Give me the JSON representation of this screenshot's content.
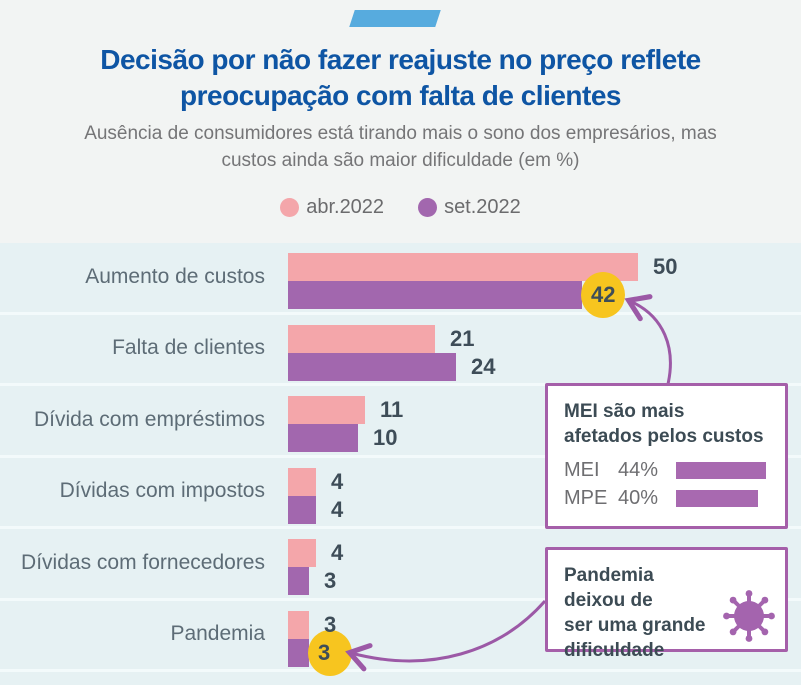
{
  "header": {
    "title_lines": [
      "Decisão por não fazer reajuste no preço reflete",
      "preocupação com falta de clientes"
    ],
    "subtitle_lines": [
      "Ausência de consumidores está tirando mais o sono dos empresários, mas",
      "custos ainda são maior dificuldade (em %)"
    ],
    "legend": [
      {
        "label": "abr.2022",
        "color": "#f4a6aa"
      },
      {
        "label": "set.2022",
        "color": "#a267ae"
      }
    ]
  },
  "chart_data": {
    "type": "bar",
    "orientation": "horizontal",
    "unit": "%",
    "categories": [
      "Aumento de custos",
      "Falta de clientes",
      "Dívida com empréstimos",
      "Dívidas com impostos",
      "Dívidas com fornecedores",
      "Pandemia"
    ],
    "series": [
      {
        "name": "abr.2022",
        "color": "#f4a6aa",
        "values": [
          50,
          21,
          11,
          4,
          4,
          3
        ]
      },
      {
        "name": "set.2022",
        "color": "#a267ae",
        "values": [
          42,
          24,
          10,
          4,
          3,
          3
        ]
      }
    ],
    "xlim": [
      0,
      50
    ],
    "grid": false,
    "legend_position": "top",
    "highlights": [
      {
        "row": 0,
        "series": 1,
        "shape": "yellow-circle"
      },
      {
        "row": 5,
        "series": 1,
        "shape": "yellow-circle"
      }
    ]
  },
  "callouts": {
    "mei": {
      "title_lines": [
        "MEI são mais",
        "afetados pelos custos"
      ],
      "rows": [
        {
          "label": "MEI",
          "value_text": "44%",
          "value": 44
        },
        {
          "label": "MPE",
          "value_text": "40%",
          "value": 40
        }
      ],
      "bar_color": "#a869b0"
    },
    "pandemia": {
      "text_lines": [
        "Pandemia deixou de",
        "ser uma grande",
        "dificuldade"
      ]
    }
  },
  "colors": {
    "title_blue": "#0e55a4",
    "deco_blue": "#57abde",
    "band_bg": "#e6f1f3",
    "highlight_yellow": "#f7c51f",
    "arrow_purple": "#9c59a6",
    "value_text": "#3e4d58",
    "virus_purple": "#a464ae"
  }
}
